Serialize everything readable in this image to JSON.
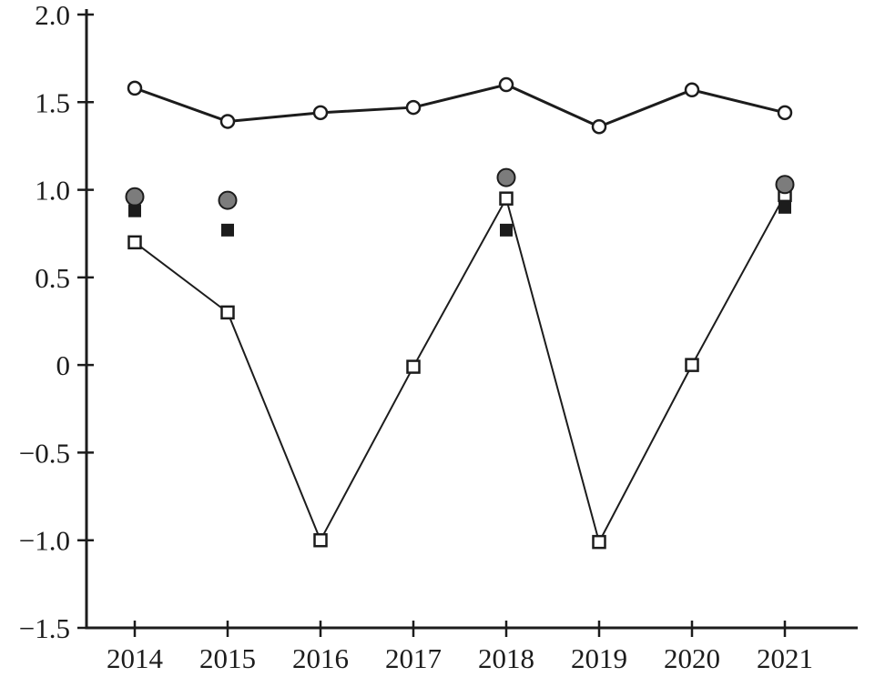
{
  "chart_data": {
    "type": "line",
    "title": "",
    "xlabel": "",
    "ylabel": "",
    "x": [
      2014,
      2015,
      2016,
      2017,
      2018,
      2019,
      2020,
      2021
    ],
    "ylim": [
      -1.5,
      2.0
    ],
    "ytick_step": 0.5,
    "grid": false,
    "legend": "none",
    "yticks": [
      {
        "value": 2.0,
        "label": "2.0"
      },
      {
        "value": 1.5,
        "label": "1.5"
      },
      {
        "value": 1.0,
        "label": "1.0"
      },
      {
        "value": 0.5,
        "label": "0.5"
      },
      {
        "value": 0,
        "label": "0"
      },
      {
        "value": -0.5,
        "label": "−0.5"
      },
      {
        "value": -1.0,
        "label": "−1.0"
      },
      {
        "value": -1.5,
        "label": "−1.5"
      }
    ],
    "series": [
      {
        "name": "open-circle-series",
        "type": "line",
        "marker": "circle-open",
        "line_width": 3,
        "values": [
          1.58,
          1.39,
          1.44,
          1.47,
          1.6,
          1.36,
          1.57,
          1.44
        ]
      },
      {
        "name": "open-square-series",
        "type": "line",
        "marker": "square-open",
        "line_width": 2,
        "values": [
          0.7,
          0.3,
          -1.0,
          -0.01,
          0.95,
          -1.01,
          0.0,
          0.97
        ]
      },
      {
        "name": "gray-circle-series",
        "type": "scatter",
        "marker": "circle-filled-gray",
        "points": [
          {
            "x": 2014,
            "y": 0.96
          },
          {
            "x": 2015,
            "y": 0.94
          },
          {
            "x": 2018,
            "y": 1.07
          },
          {
            "x": 2021,
            "y": 1.03
          }
        ]
      },
      {
        "name": "black-square-series",
        "type": "scatter",
        "marker": "square-filled-black",
        "points": [
          {
            "x": 2014,
            "y": 0.88
          },
          {
            "x": 2015,
            "y": 0.77
          },
          {
            "x": 2018,
            "y": 0.77
          },
          {
            "x": 2021,
            "y": 0.9
          }
        ]
      }
    ],
    "colors": {
      "line": "#1c1c1c",
      "gray_fill": "#7c7c7c",
      "background": "#ffffff"
    }
  }
}
